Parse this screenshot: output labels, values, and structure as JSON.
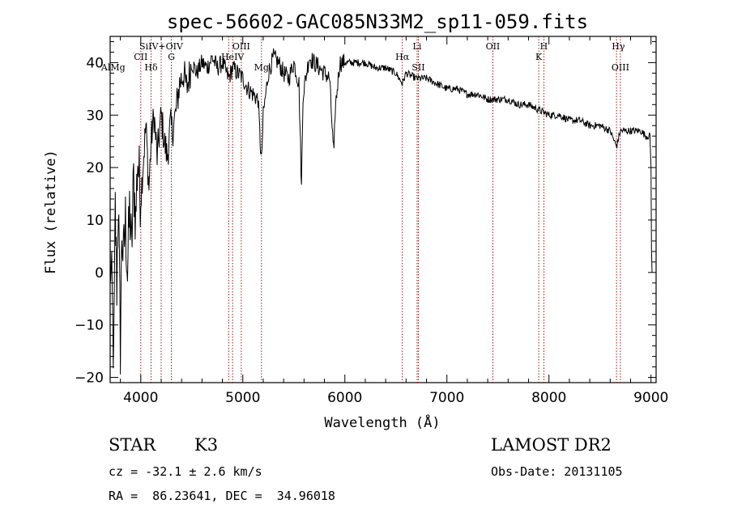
{
  "chart_data": {
    "type": "line",
    "title": "spec-56602-GAC085N33M2_sp11-059.fits",
    "xlabel": "Wavelength (Å)",
    "ylabel": "Flux (relative)",
    "xlim": [
      3700,
      9050
    ],
    "ylim": [
      -21,
      45
    ],
    "x_ticks": [
      4000,
      5000,
      6000,
      7000,
      8000,
      9000
    ],
    "y_ticks": [
      -20,
      -10,
      0,
      10,
      20,
      30,
      40
    ],
    "grid": false,
    "spectrum_anchors": [
      [
        3700,
        3
      ],
      [
        3720,
        -5
      ],
      [
        3735,
        -18
      ],
      [
        3750,
        12
      ],
      [
        3765,
        -2
      ],
      [
        3780,
        14
      ],
      [
        3800,
        -14
      ],
      [
        3815,
        8
      ],
      [
        3830,
        2
      ],
      [
        3850,
        10
      ],
      [
        3870,
        0
      ],
      [
        3890,
        12
      ],
      [
        3910,
        4
      ],
      [
        3930,
        18
      ],
      [
        3950,
        10
      ],
      [
        3970,
        22
      ],
      [
        4000,
        14
      ],
      [
        4020,
        20
      ],
      [
        4050,
        28
      ],
      [
        4080,
        16
      ],
      [
        4101,
        25
      ],
      [
        4130,
        30
      ],
      [
        4160,
        22
      ],
      [
        4200,
        30
      ],
      [
        4230,
        25
      ],
      [
        4260,
        22
      ],
      [
        4290,
        28
      ],
      [
        4310,
        27
      ],
      [
        4340,
        30
      ],
      [
        4380,
        36
      ],
      [
        4420,
        38
      ],
      [
        4450,
        35
      ],
      [
        4500,
        40
      ],
      [
        4550,
        38
      ],
      [
        4600,
        40
      ],
      [
        4650,
        39
      ],
      [
        4700,
        41
      ],
      [
        4750,
        39
      ],
      [
        4800,
        40
      ],
      [
        4861,
        37
      ],
      [
        4900,
        39
      ],
      [
        4950,
        38
      ],
      [
        5000,
        37
      ],
      [
        5050,
        35
      ],
      [
        5100,
        34
      ],
      [
        5150,
        33
      ],
      [
        5170,
        25
      ],
      [
        5183,
        21
      ],
      [
        5200,
        30
      ],
      [
        5250,
        38
      ],
      [
        5300,
        41
      ],
      [
        5350,
        40
      ],
      [
        5400,
        38
      ],
      [
        5450,
        37
      ],
      [
        5500,
        40
      ],
      [
        5550,
        36
      ],
      [
        5575,
        16
      ],
      [
        5590,
        34
      ],
      [
        5650,
        41
      ],
      [
        5700,
        40
      ],
      [
        5750,
        39
      ],
      [
        5800,
        38
      ],
      [
        5850,
        37
      ],
      [
        5880,
        26
      ],
      [
        5893,
        22
      ],
      [
        5905,
        31
      ],
      [
        5950,
        40
      ],
      [
        6000,
        40
      ],
      [
        6100,
        40
      ],
      [
        6200,
        40
      ],
      [
        6300,
        39
      ],
      [
        6400,
        39
      ],
      [
        6500,
        38
      ],
      [
        6563,
        36
      ],
      [
        6600,
        38
      ],
      [
        6700,
        37
      ],
      [
        6800,
        37
      ],
      [
        6900,
        36
      ],
      [
        7000,
        35
      ],
      [
        7100,
        35
      ],
      [
        7200,
        34
      ],
      [
        7300,
        34
      ],
      [
        7400,
        33
      ],
      [
        7500,
        33
      ],
      [
        7600,
        33
      ],
      [
        7700,
        32
      ],
      [
        7800,
        32
      ],
      [
        7900,
        31
      ],
      [
        8000,
        30
      ],
      [
        8100,
        30
      ],
      [
        8200,
        29
      ],
      [
        8300,
        29
      ],
      [
        8400,
        28
      ],
      [
        8500,
        28
      ],
      [
        8600,
        27
      ],
      [
        8662,
        24
      ],
      [
        8700,
        27
      ],
      [
        8800,
        27
      ],
      [
        8900,
        27
      ],
      [
        8950,
        26
      ],
      [
        8990,
        26
      ],
      [
        9000,
        20
      ],
      [
        9005,
        5
      ],
      [
        9010,
        0
      ]
    ],
    "spectral_lines": [
      {
        "label": "AlMg",
        "x": 3730,
        "y": 38.5
      },
      {
        "label": "SiIV+OIV",
        "x": 4200,
        "y": 42.5
      },
      {
        "label": "CII",
        "x": 4000,
        "y": 40.5
      },
      {
        "label": "G",
        "x": 4300,
        "y": 40.5
      },
      {
        "label": "Hδ",
        "x": 4101,
        "y": 38.5
      },
      {
        "label": "OIII",
        "x": 4985,
        "y": 42.5
      },
      {
        "label": "HeIV",
        "x": 4900,
        "y": 40.5
      },
      {
        "label": "Mg",
        "x": 5183,
        "y": 38.5
      },
      {
        "label": "Hα",
        "x": 6563,
        "y": 40.5
      },
      {
        "label": "Li",
        "x": 6708,
        "y": 42.5
      },
      {
        "label": "SII",
        "x": 6720,
        "y": 38.5
      },
      {
        "label": "OII",
        "x": 7450,
        "y": 42.5
      },
      {
        "label": "K",
        "x": 7900,
        "y": 40.5
      },
      {
        "label": "H",
        "x": 7950,
        "y": 42.5
      },
      {
        "label": "Hγ",
        "x": 8680,
        "y": 42.5
      },
      {
        "label": "OIII",
        "x": 8700,
        "y": 38.5
      }
    ],
    "marker_lines": [
      4000,
      4101,
      4200,
      4300,
      4861,
      4900,
      4985,
      5183,
      6563,
      6708,
      6720,
      7450,
      7900,
      7950,
      8662,
      8700
    ]
  },
  "info": {
    "object_type": "STAR",
    "subclass": "K3",
    "survey": "LAMOST DR2",
    "redshift": "cz = -32.1 ± 2.6 km/s",
    "obs_date": "Obs-Date: 20131105",
    "coords": "RA =  86.23641, DEC =  34.96018"
  },
  "colors": {
    "line": "#000000",
    "marker": "#8b0000"
  }
}
